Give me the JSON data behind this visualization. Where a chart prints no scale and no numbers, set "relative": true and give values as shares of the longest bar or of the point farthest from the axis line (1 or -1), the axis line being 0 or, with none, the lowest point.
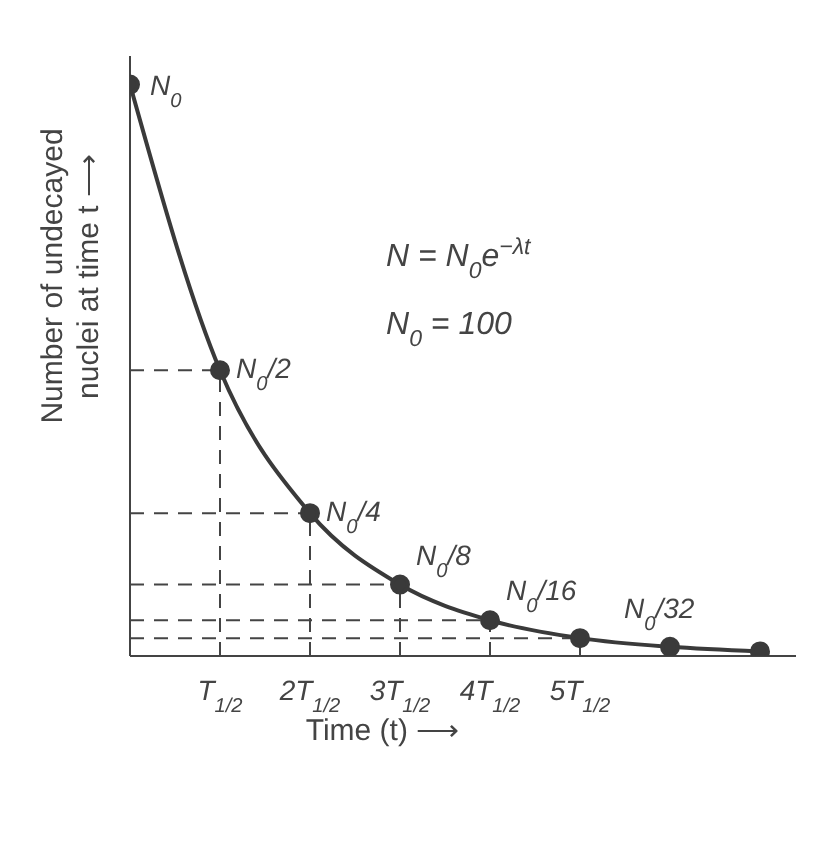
{
  "chart_data": {
    "type": "line",
    "relative": true,
    "categories": [
      null,
      "T$_{1/2}$",
      "2T$_{1/2}$",
      "3T$_{1/2}$",
      "4T$_{1/2}$",
      "5T$_{1/2}$",
      null,
      null
    ],
    "series": [
      {
        "color": "#3a3a3a",
        "values": [
          1,
          0.5,
          0.25,
          0.125,
          0.0625,
          0.03125,
          0.016,
          0.008
        ]
      }
    ],
    "value_labels": [
      "N$_{0}$",
      "N$_{0}$/2",
      "N$_{0}$/4",
      "N$_{0}$/8",
      "N$_{0}$/16",
      "N$_{0}$/32",
      null,
      null
    ],
    "xlabel": "Time (t) ⟶",
    "ylabel": "Number of undecayed nuclei at time t ⟶",
    "annotations": [
      "N = N$_{0}$e$^{−λt}$",
      "N$_{0}$ = 100"
    ],
    "marker": "circle",
    "line_style": "solid"
  }
}
